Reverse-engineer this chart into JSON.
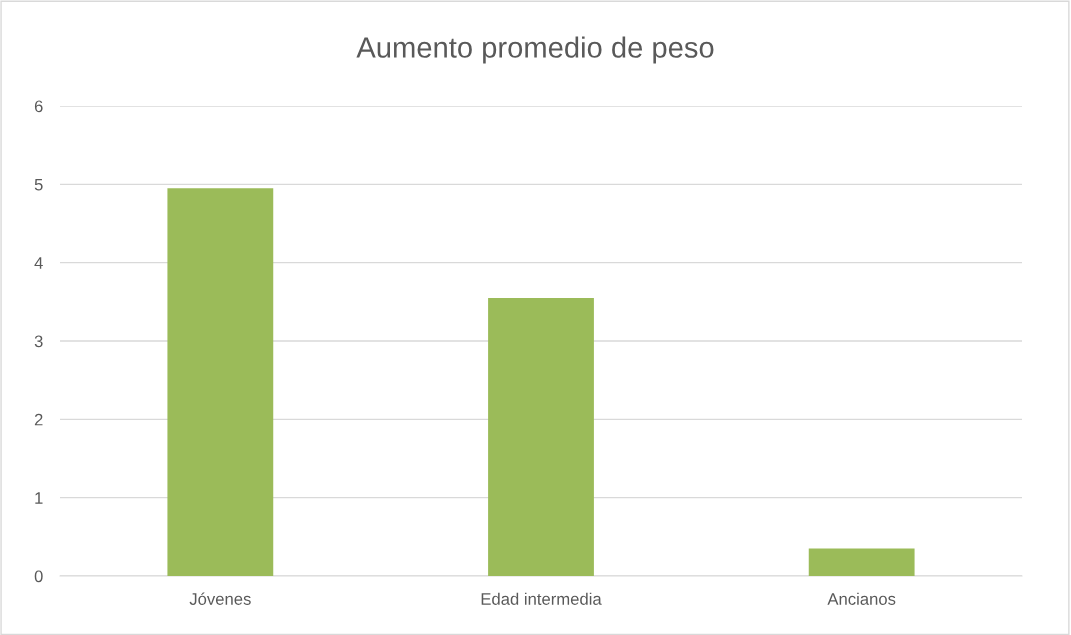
{
  "chart_data": {
    "type": "bar",
    "title": "Aumento promedio de peso",
    "categories": [
      "Jóvenes",
      "Edad intermedia",
      "Ancianos"
    ],
    "values": [
      4.95,
      3.55,
      0.35
    ],
    "color": "#9bbb59",
    "ylim": [
      0,
      6
    ],
    "yticks": [
      0,
      1,
      2,
      3,
      4,
      5,
      6
    ],
    "grid": "y"
  }
}
